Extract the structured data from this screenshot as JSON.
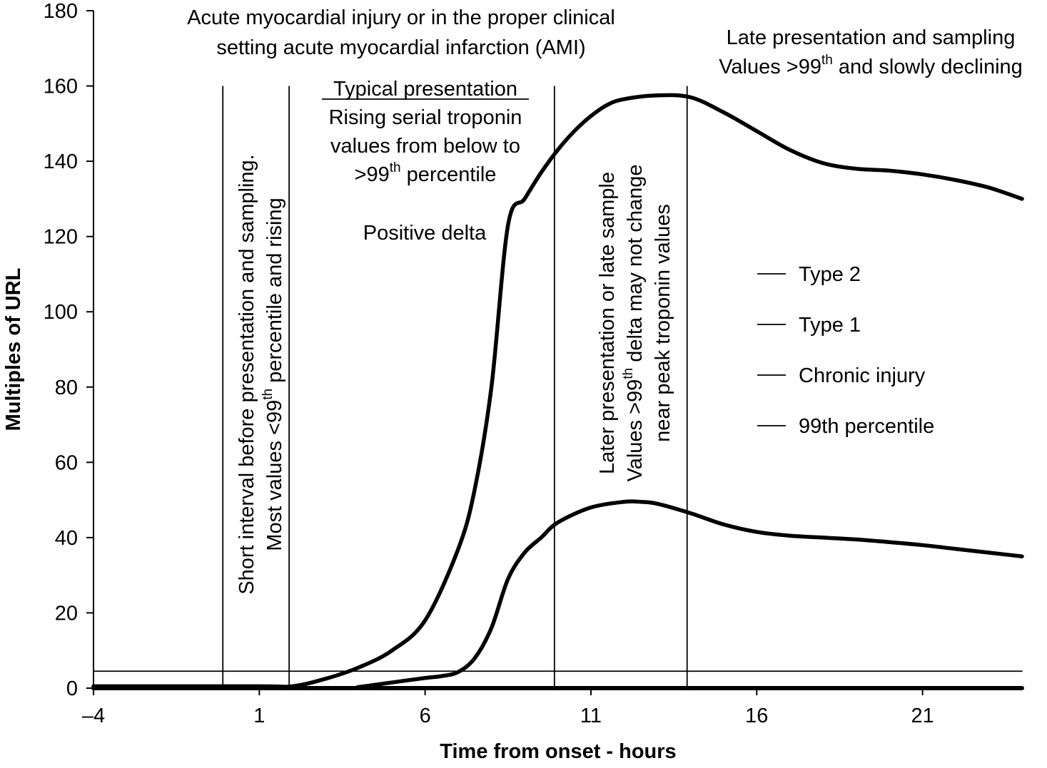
{
  "chart_data": {
    "type": "line",
    "title": "",
    "xlabel": "Time from onset - hours",
    "ylabel": "Multiples of URL",
    "xlim": [
      -4,
      24
    ],
    "ylim": [
      0,
      180
    ],
    "xticks": [
      -4,
      1,
      6,
      11,
      16,
      21
    ],
    "xtick_labels": [
      "–4",
      "1",
      "6",
      "11",
      "16",
      "21"
    ],
    "yticks": [
      0,
      20,
      40,
      60,
      80,
      100,
      120,
      140,
      160,
      180
    ],
    "grid": false,
    "legend": {
      "placement": "right",
      "entries": [
        "Type 2",
        "Type 1",
        "Chronic injury",
        "99th percentile"
      ]
    },
    "series": [
      {
        "name": "Type 1",
        "x": [
          -4,
          1,
          2,
          3,
          4,
          5,
          6,
          7,
          7.5,
          8,
          8.5,
          9,
          9.5,
          10,
          10.5,
          11,
          11.5,
          12,
          13,
          14,
          15,
          16,
          17,
          18,
          19,
          20,
          21,
          22,
          23,
          24
        ],
        "y": [
          0.5,
          0.5,
          0.5,
          2.5,
          5.5,
          10,
          18,
          37,
          53,
          80,
          123,
          130,
          137,
          143,
          148,
          152,
          155,
          156.5,
          157.5,
          157,
          153,
          148,
          143,
          139.5,
          138,
          137.5,
          136.5,
          135,
          133,
          130
        ]
      },
      {
        "name": "Type 2",
        "x": [
          -4,
          3.5,
          4,
          5,
          6,
          6.5,
          7,
          7.5,
          8,
          8.5,
          9,
          9.5,
          10,
          11,
          12,
          12.5,
          13,
          14,
          15,
          16,
          17,
          18,
          19,
          20,
          21,
          22,
          23,
          24
        ],
        "y": [
          0,
          0,
          0.3,
          1.5,
          2.7,
          3.2,
          4.3,
          8,
          16,
          29,
          36,
          40,
          44,
          48,
          49.5,
          49.5,
          49,
          46.5,
          43.5,
          41.5,
          40.5,
          40,
          39.5,
          38.8,
          38,
          37,
          36,
          35
        ]
      },
      {
        "name": "Chronic injury",
        "x": [
          -4,
          24
        ],
        "y": [
          0,
          0
        ]
      },
      {
        "name": "99th percentile",
        "x": [
          -4,
          24
        ],
        "y": [
          4.5,
          4.5
        ]
      }
    ],
    "vertical_lines": [
      -0.1,
      1.9,
      9.9,
      13.9
    ],
    "annotations": {
      "top_left_title": [
        "Acute myocardial injury or in the proper clinical",
        "setting acute myocardial infarction (AMI)"
      ],
      "late": {
        "line1": "Late presentation and sampling",
        "line2_before": "Values >99",
        "line2_sup": "th",
        "line2_after": " and slowly declining"
      },
      "typical": {
        "heading": "Typical presentation",
        "line1": "Rising serial troponin",
        "line2": "values from below to",
        "line3_before": ">99",
        "line3_sup": "th",
        "line3_after": " percentile",
        "delta": "Positive delta"
      },
      "short_interval": {
        "line1": "Short interval before presentation and sampling.",
        "line2_before": "Most values <99",
        "line2_sup": "th",
        "line2_after": " percentile and rising"
      },
      "later_presentation": {
        "line1": "Later presentation or late sample",
        "line2_before": "Values >99",
        "line2_sup": "th",
        "line2_after": " delta may not change",
        "line3": "near peak troponin values"
      }
    }
  }
}
